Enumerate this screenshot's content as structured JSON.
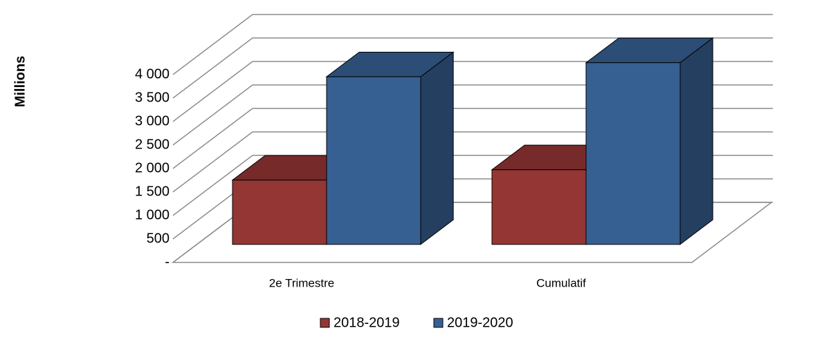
{
  "chart_data": {
    "type": "bar3d",
    "y_label": "Millions",
    "categories": [
      "2e Trimestre",
      "Cumulatif"
    ],
    "series": [
      {
        "name": "2018-2019",
        "color": "#943634",
        "values": [
          1370,
          1590
        ]
      },
      {
        "name": "2019-2020",
        "color": "#376092",
        "values": [
          3570,
          3870
        ]
      }
    ],
    "ylim": [
      0,
      4000
    ],
    "yticks": [
      {
        "value": 0,
        "label": "-"
      },
      500,
      {
        "value": 1000,
        "label": "1 000"
      },
      {
        "value": 1500,
        "label": "1 500"
      },
      {
        "value": 2000,
        "label": "2 000"
      },
      {
        "value": 2500,
        "label": "2 500"
      },
      {
        "value": 3000,
        "label": "3 000"
      },
      {
        "value": 3500,
        "label": "3 500"
      },
      {
        "value": 4000,
        "label": "4 000"
      }
    ],
    "grid": true
  }
}
